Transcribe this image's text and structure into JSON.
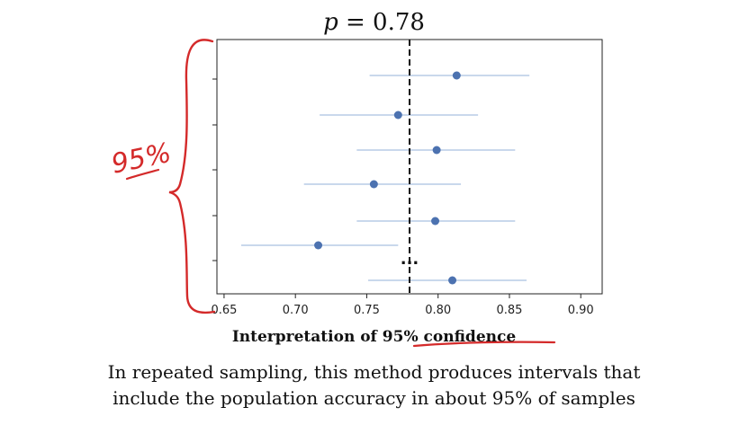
{
  "title": {
    "var": "p",
    "rest": " = 0.78"
  },
  "chart_data": {
    "type": "scatter",
    "title": "p = 0.78",
    "xlabel": "",
    "ylabel": "",
    "xlim": [
      0.645,
      0.915
    ],
    "xticks": [
      "0.65",
      "0.70",
      "0.75",
      "0.80",
      "0.85",
      "0.90"
    ],
    "tick_values": [
      0.65,
      0.7,
      0.75,
      0.8,
      0.85,
      0.9
    ],
    "reference_line": 0.78,
    "intervals": [
      {
        "estimate": 0.813,
        "lower": 0.752,
        "upper": 0.864
      },
      {
        "estimate": 0.772,
        "lower": 0.717,
        "upper": 0.828
      },
      {
        "estimate": 0.799,
        "lower": 0.743,
        "upper": 0.854
      },
      {
        "estimate": 0.755,
        "lower": 0.706,
        "upper": 0.816
      },
      {
        "estimate": 0.798,
        "lower": 0.743,
        "upper": 0.854
      },
      {
        "estimate": 0.716,
        "lower": 0.662,
        "upper": 0.772
      },
      {
        "estimate": 0.81,
        "lower": 0.751,
        "upper": 0.862
      }
    ],
    "ellipsis": "...",
    "grid": false,
    "colors": {
      "point": "#4c72b0",
      "interval": "#a9c0e0",
      "reference": "#111111"
    }
  },
  "annotation": {
    "handwritten_label": "95%",
    "color": "#d42a2a"
  },
  "caption": {
    "prefix": "Interpretation of ",
    "highlight": "95% confidence"
  },
  "body": {
    "line1": "In repeated sampling, this method produces intervals that",
    "line2": "include the population accuracy in about 95% of samples"
  }
}
